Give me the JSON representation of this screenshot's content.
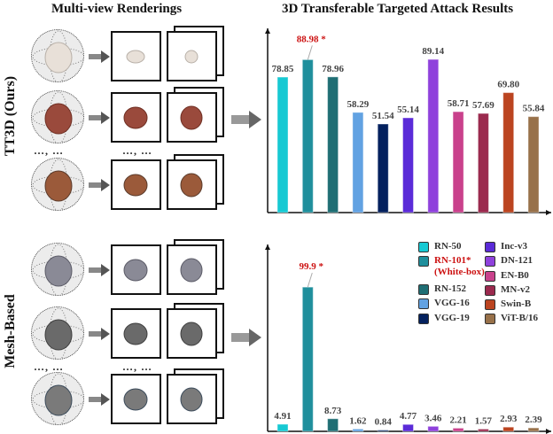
{
  "titles": {
    "left": "Multi-view Renderings",
    "right": "3D Transferable Targeted Attack Results"
  },
  "row_labels": {
    "top": "TT3D (Ours)",
    "bottom": "Mesh-Based"
  },
  "ellipsis": "…, …",
  "chart_data": [
    {
      "type": "bar",
      "title": "3D Transferable Targeted Attack Results",
      "method": "TT3D (Ours)",
      "categories": [
        "RN-50",
        "RN-101",
        "RN-152",
        "VGG-16",
        "VGG-19",
        "Inc-v3",
        "DN-121",
        "EN-B0",
        "MN-v2",
        "Swin-B",
        "ViT-B/16"
      ],
      "values": [
        78.85,
        88.98,
        78.96,
        58.29,
        51.54,
        55.14,
        89.14,
        58.71,
        57.69,
        69.8,
        55.84
      ],
      "labels": [
        "78.85",
        "88.98 *",
        "78.96",
        "58.29",
        "51.54",
        "55.14",
        "89.14",
        "58.71",
        "57.69",
        "69.80",
        "55.84"
      ],
      "highlight_index": 1,
      "ylim": [
        0,
        100
      ]
    },
    {
      "type": "bar",
      "method": "Mesh-Based",
      "categories": [
        "RN-50",
        "RN-101",
        "RN-152",
        "VGG-16",
        "VGG-19",
        "Inc-v3",
        "DN-121",
        "EN-B0",
        "MN-v2",
        "Swin-B",
        "ViT-B/16"
      ],
      "values": [
        4.91,
        99.9,
        8.73,
        1.62,
        0.84,
        4.77,
        3.46,
        2.21,
        1.57,
        2.93,
        2.39
      ],
      "labels": [
        "4.91",
        "99.9 *",
        "8.73",
        "1.62",
        "0.84",
        "4.77",
        "3.46",
        "2.21",
        "1.57",
        "2.93",
        "2.39"
      ],
      "highlight_index": 1,
      "ylim": [
        0,
        100
      ]
    }
  ],
  "colors": [
    "#17c9d3",
    "#1f8f9c",
    "#1f6e74",
    "#62a2e2",
    "#04215e",
    "#5b2bd8",
    "#8f41dc",
    "#c9418c",
    "#9b2a4e",
    "#bb4420",
    "#98714a"
  ],
  "highlight_color": "#cc1111",
  "legend": [
    {
      "label": "RN-50"
    },
    {
      "label": "RN-101*",
      "sub": "(White-box)"
    },
    {
      "label": "RN-152"
    },
    {
      "label": "VGG-16"
    },
    {
      "label": "VGG-19"
    },
    {
      "label": "Inc-v3"
    },
    {
      "label": "DN-121"
    },
    {
      "label": "EN-B0"
    },
    {
      "label": "MN-v2"
    },
    {
      "label": "Swin-B"
    },
    {
      "label": "ViT-B/16"
    }
  ]
}
